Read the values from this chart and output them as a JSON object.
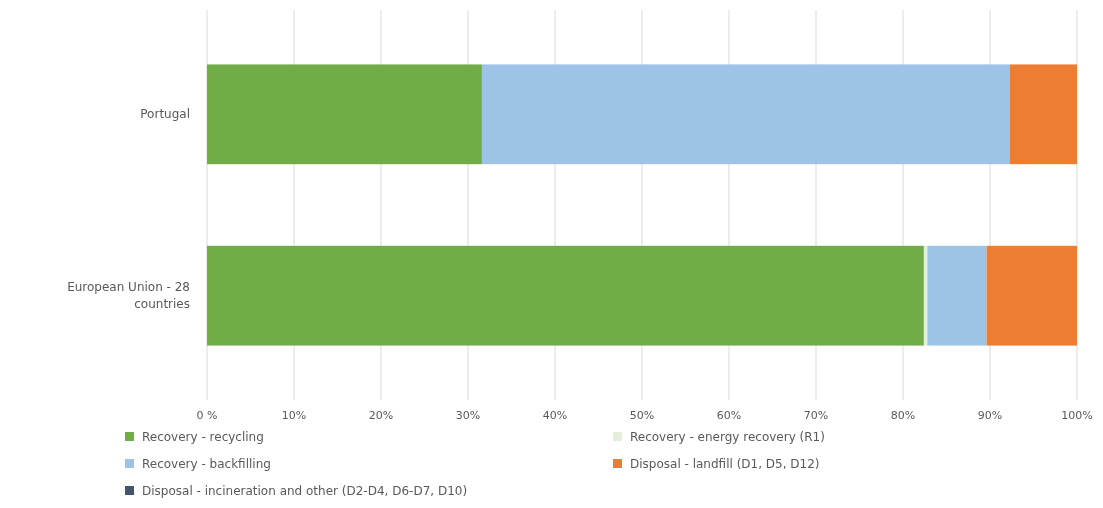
{
  "chart_data": {
    "type": "bar",
    "orientation": "horizontal",
    "stacked": true,
    "categories": [
      "Portugal",
      "European Union - 28 countries"
    ],
    "series": [
      {
        "name": "Recovery - recycling",
        "color": "#70ad47",
        "values": [
          31.6,
          82.4
        ]
      },
      {
        "name": "Recovery - energy recovery (R1)",
        "color": "#e2efda",
        "values": [
          0,
          0.4
        ]
      },
      {
        "name": "Recovery - backfilling",
        "color": "#9dc3e6",
        "values": [
          60.7,
          6.8
        ]
      },
      {
        "name": "Disposal - landfill (D1, D5, D12)",
        "color": "#ed7d31",
        "values": [
          7.7,
          10.4
        ]
      },
      {
        "name": "Disposal - incineration and other (D2-D4, D6-D7, D10)",
        "color": "#44546a",
        "values": [
          0,
          0
        ]
      }
    ],
    "xlim": [
      0,
      100
    ],
    "xticks": [
      {
        "value": 0,
        "label": "0 %"
      },
      {
        "value": 10,
        "label": "10%"
      },
      {
        "value": 20,
        "label": "20%"
      },
      {
        "value": 30,
        "label": "30%"
      },
      {
        "value": 40,
        "label": "40%"
      },
      {
        "value": 50,
        "label": "50%"
      },
      {
        "value": 60,
        "label": "60%"
      },
      {
        "value": 70,
        "label": "70%"
      },
      {
        "value": 80,
        "label": "80%"
      },
      {
        "value": 90,
        "label": "90%"
      },
      {
        "value": 100,
        "label": "100%"
      }
    ],
    "grid": "x",
    "legend": "bottom"
  }
}
